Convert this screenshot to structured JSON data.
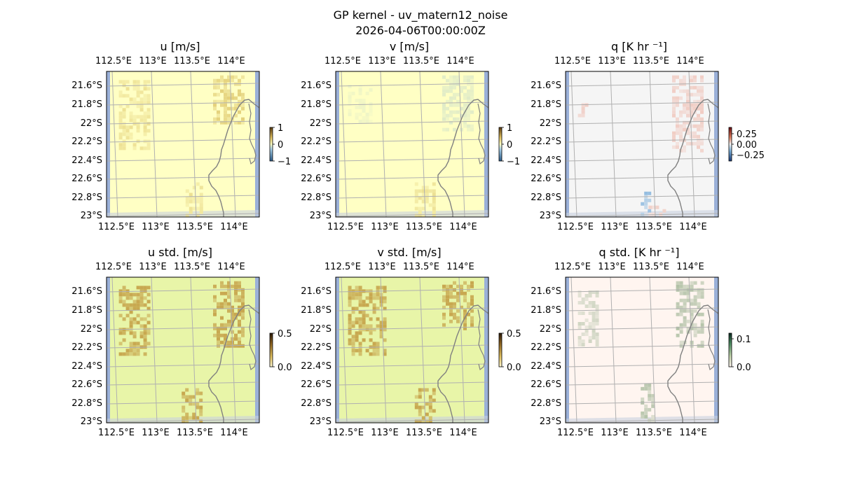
{
  "figure": {
    "title_line1": "GP kernel - uv_matern12_noise",
    "title_line2": "2026-04-06T00:00:00Z"
  },
  "chart_data": [
    {
      "type": "heatmap",
      "title": "u [m/s]",
      "xlabel": "",
      "ylabel": "",
      "x_ticks": [
        "112.5°E",
        "113°E",
        "113.5°E",
        "114°E"
      ],
      "y_ticks": [
        "21.6°S",
        "21.8°S",
        "22°S",
        "22.2°S",
        "22.4°S",
        "22.6°S",
        "22.8°S",
        "23°S"
      ],
      "colorbar": {
        "ticks": [
          1,
          0,
          -1
        ],
        "tick_labels": [
          "1",
          "0",
          "−1"
        ],
        "vmin": -1,
        "vmax": 1
      },
      "base_color": "#ffffc4",
      "grid": true,
      "patches": [
        {
          "lon": [
            113.75,
            114.15
          ],
          "lat": [
            -22.0,
            -21.5
          ],
          "value": 0.45
        },
        {
          "lon": [
            112.55,
            112.95
          ],
          "lat": [
            -22.3,
            -21.55
          ],
          "value": 0.3
        },
        {
          "lon": [
            113.4,
            113.6
          ],
          "lat": [
            -23.0,
            -22.65
          ],
          "value": 0.3
        }
      ]
    },
    {
      "type": "heatmap",
      "title": "v [m/s]",
      "xlabel": "",
      "ylabel": "",
      "x_ticks": [
        "112.5°E",
        "113°E",
        "113.5°E",
        "114°E"
      ],
      "y_ticks": [
        "21.6°S",
        "21.8°S",
        "22°S",
        "22.2°S",
        "22.4°S",
        "22.6°S",
        "22.8°S",
        "23°S"
      ],
      "colorbar": {
        "ticks": [
          1,
          0,
          -1
        ],
        "tick_labels": [
          "1",
          "0",
          "−1"
        ],
        "vmin": -1,
        "vmax": 1
      },
      "base_color": "#ffffc4",
      "grid": true,
      "patches": [
        {
          "lon": [
            113.75,
            114.15
          ],
          "lat": [
            -22.1,
            -21.5
          ],
          "value": -0.2
        },
        {
          "lon": [
            113.4,
            113.65
          ],
          "lat": [
            -23.0,
            -22.65
          ],
          "value": 0.3
        },
        {
          "lon": [
            112.55,
            112.85
          ],
          "lat": [
            -22.0,
            -21.6
          ],
          "value": -0.1
        }
      ]
    },
    {
      "type": "heatmap",
      "title": "q [K hr ⁻¹]",
      "xlabel": "",
      "ylabel": "",
      "x_ticks": [
        "112.5°E",
        "113°E",
        "113.5°E",
        "114°E"
      ],
      "y_ticks": [
        "21.6°S",
        "21.8°S",
        "22°S",
        "22.2°S",
        "22.4°S",
        "22.6°S",
        "22.8°S",
        "23°S"
      ],
      "colorbar": {
        "ticks": [
          0.25,
          0.0,
          -0.25
        ],
        "tick_labels": [
          "0.25",
          "0.00",
          "−0.25"
        ],
        "vmin": -0.4,
        "vmax": 0.4
      },
      "base_color": "#f5f5f5",
      "grid": true,
      "patches": [
        {
          "lon": [
            113.75,
            114.15
          ],
          "lat": [
            -22.3,
            -21.5
          ],
          "value": 0.1
        },
        {
          "lon": [
            112.55,
            112.65
          ],
          "lat": [
            -21.95,
            -21.8
          ],
          "value": 0.1
        },
        {
          "lon": [
            113.35,
            113.45
          ],
          "lat": [
            -23.0,
            -22.75
          ],
          "value": -0.2
        },
        {
          "lon": [
            113.45,
            113.65
          ],
          "lat": [
            -23.0,
            -22.9
          ],
          "value": 0.1
        }
      ]
    },
    {
      "type": "heatmap",
      "title": "u std. [m/s]",
      "xlabel": "",
      "ylabel": "",
      "x_ticks": [
        "112.5°E",
        "113°E",
        "113.5°E",
        "114°E"
      ],
      "y_ticks": [
        "21.6°S",
        "21.8°S",
        "22°S",
        "22.2°S",
        "22.4°S",
        "22.6°S",
        "22.8°S",
        "23°S"
      ],
      "colorbar": {
        "ticks": [
          0.5,
          0.0
        ],
        "tick_labels": [
          "0.5",
          "0.0"
        ],
        "vmin": 0,
        "vmax": 0.5
      },
      "base_color": "#e8f5a8",
      "grid": true,
      "patches": [
        {
          "lon": [
            113.75,
            114.15
          ],
          "lat": [
            -22.2,
            -21.5
          ],
          "value": 0.5
        },
        {
          "lon": [
            112.55,
            112.95
          ],
          "lat": [
            -22.3,
            -21.55
          ],
          "value": 0.5
        },
        {
          "lon": [
            113.35,
            113.6
          ],
          "lat": [
            -23.0,
            -22.65
          ],
          "value": 0.5
        }
      ]
    },
    {
      "type": "heatmap",
      "title": "v std. [m/s]",
      "xlabel": "",
      "ylabel": "",
      "x_ticks": [
        "112.5°E",
        "113°E",
        "113.5°E",
        "114°E"
      ],
      "y_ticks": [
        "21.6°S",
        "21.8°S",
        "22°S",
        "22.2°S",
        "22.4°S",
        "22.6°S",
        "22.8°S",
        "23°S"
      ],
      "colorbar": {
        "ticks": [
          0.5,
          0.0
        ],
        "tick_labels": [
          "0.5",
          "0.0"
        ],
        "vmin": 0,
        "vmax": 0.5
      },
      "base_color": "#e8f5a8",
      "grid": true,
      "patches": [
        {
          "lon": [
            113.75,
            114.15
          ],
          "lat": [
            -22.0,
            -21.5
          ],
          "value": 0.5
        },
        {
          "lon": [
            112.55,
            113.0
          ],
          "lat": [
            -22.3,
            -21.55
          ],
          "value": 0.5
        },
        {
          "lon": [
            113.4,
            113.65
          ],
          "lat": [
            -23.0,
            -22.65
          ],
          "value": 0.5
        }
      ]
    },
    {
      "type": "heatmap",
      "title": "q std. [K hr ⁻¹]",
      "xlabel": "",
      "ylabel": "",
      "x_ticks": [
        "112.5°E",
        "113°E",
        "113.5°E",
        "114°E"
      ],
      "y_ticks": [
        "21.6°S",
        "21.8°S",
        "22°S",
        "22.2°S",
        "22.4°S",
        "22.6°S",
        "22.8°S",
        "23°S"
      ],
      "colorbar": {
        "ticks": [
          0.1,
          0.0
        ],
        "tick_labels": [
          "0.1",
          "0.0"
        ],
        "vmin": 0,
        "vmax": 0.12
      },
      "base_color": "#fff5f0",
      "grid": true,
      "patches": [
        {
          "lon": [
            113.8,
            114.15
          ],
          "lat": [
            -22.2,
            -21.5
          ],
          "value": 0.05
        },
        {
          "lon": [
            112.55,
            112.8
          ],
          "lat": [
            -22.2,
            -21.6
          ],
          "value": 0.03
        },
        {
          "lon": [
            113.35,
            113.5
          ],
          "lat": [
            -23.0,
            -22.6
          ],
          "value": 0.05
        }
      ]
    }
  ]
}
